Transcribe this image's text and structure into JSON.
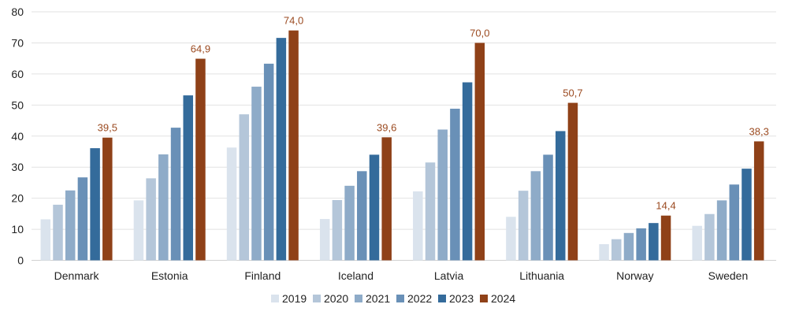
{
  "chart_data": {
    "type": "bar",
    "title": "",
    "xlabel": "",
    "ylabel": "",
    "ylim": [
      0,
      80
    ],
    "yticks": [
      0,
      10,
      20,
      30,
      40,
      50,
      60,
      70,
      80
    ],
    "grid": true,
    "legend_position": "bottom",
    "categories": [
      "Denmark",
      "Estonia",
      "Finland",
      "Iceland",
      "Latvia",
      "Lithuania",
      "Norway",
      "Sweden"
    ],
    "series": [
      {
        "name": "2019",
        "color": "#dae3ed",
        "values": [
          13.2,
          19.3,
          36.3,
          13.3,
          22.2,
          14.0,
          5.2,
          11.1
        ]
      },
      {
        "name": "2020",
        "color": "#b4c6d9",
        "values": [
          17.9,
          26.4,
          47.0,
          19.4,
          31.5,
          22.4,
          6.8,
          14.9
        ]
      },
      {
        "name": "2021",
        "color": "#8eabc8",
        "values": [
          22.5,
          34.1,
          55.9,
          24.0,
          42.1,
          28.7,
          8.8,
          19.3
        ]
      },
      {
        "name": "2022",
        "color": "#6990b7",
        "values": [
          26.7,
          42.7,
          63.3,
          28.7,
          48.8,
          34.0,
          10.3,
          24.4
        ]
      },
      {
        "name": "2023",
        "color": "#346b9b",
        "values": [
          36.1,
          53.1,
          71.6,
          34.0,
          57.3,
          41.6,
          12.0,
          29.5
        ]
      },
      {
        "name": "2024",
        "color": "#8f4118",
        "values": [
          39.5,
          64.9,
          74.0,
          39.6,
          70.0,
          50.7,
          14.4,
          38.3
        ]
      }
    ],
    "data_labels": {
      "series": "2024",
      "color": "#9b4a20",
      "texts": [
        "39,5",
        "64,9",
        "74,0",
        "39,6",
        "70,0",
        "50,7",
        "14,4",
        "38,3"
      ]
    }
  }
}
